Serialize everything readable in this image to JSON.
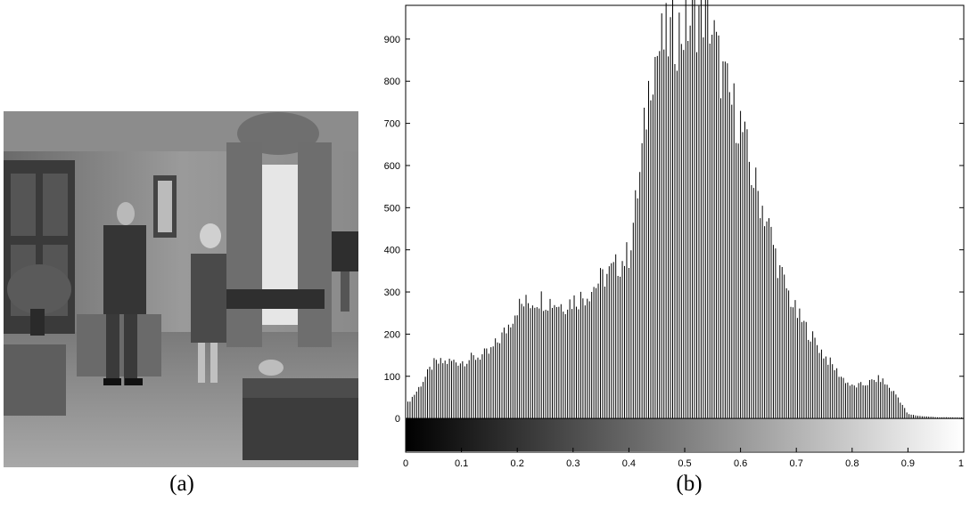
{
  "panel_a": {
    "caption": "(a)"
  },
  "panel_b": {
    "caption": "(b)"
  },
  "chart_data": {
    "type": "bar",
    "title": "",
    "xlabel": "",
    "ylabel": "",
    "xlim": [
      0,
      1
    ],
    "ylim": [
      -80,
      980
    ],
    "x_ticks": [
      0,
      0.1,
      0.2,
      0.3,
      0.4,
      0.5,
      0.6,
      0.7,
      0.8,
      0.9,
      1
    ],
    "x_tick_labels": [
      "0",
      "0.1",
      "0.2",
      "0.3",
      "0.4",
      "0.5",
      "0.6",
      "0.7",
      "0.8",
      "0.9",
      "1"
    ],
    "y_ticks": [
      0,
      100,
      200,
      300,
      400,
      500,
      600,
      700,
      800,
      900
    ],
    "y_tick_labels": [
      "0",
      "100",
      "200",
      "300",
      "400",
      "500",
      "600",
      "700",
      "800",
      "900"
    ],
    "grid": false,
    "colorbar": "grayscale gradient from black (0) to white (1) below the zero line",
    "bar_color": "#000000",
    "control_points": [
      [
        0.0,
        30
      ],
      [
        0.02,
        65
      ],
      [
        0.05,
        130
      ],
      [
        0.08,
        135
      ],
      [
        0.1,
        135
      ],
      [
        0.15,
        155
      ],
      [
        0.18,
        210
      ],
      [
        0.2,
        265
      ],
      [
        0.24,
        285
      ],
      [
        0.28,
        270
      ],
      [
        0.32,
        290
      ],
      [
        0.35,
        330
      ],
      [
        0.37,
        350
      ],
      [
        0.4,
        390
      ],
      [
        0.42,
        580
      ],
      [
        0.44,
        840
      ],
      [
        0.46,
        890
      ],
      [
        0.48,
        910
      ],
      [
        0.5,
        930
      ],
      [
        0.52,
        960
      ],
      [
        0.54,
        980
      ],
      [
        0.56,
        850
      ],
      [
        0.58,
        760
      ],
      [
        0.6,
        700
      ],
      [
        0.62,
        580
      ],
      [
        0.65,
        460
      ],
      [
        0.67,
        350
      ],
      [
        0.7,
        250
      ],
      [
        0.72,
        210
      ],
      [
        0.75,
        150
      ],
      [
        0.78,
        100
      ],
      [
        0.8,
        75
      ],
      [
        0.82,
        80
      ],
      [
        0.85,
        95
      ],
      [
        0.88,
        55
      ],
      [
        0.9,
        10
      ],
      [
        0.92,
        6
      ],
      [
        0.95,
        3
      ],
      [
        1.0,
        2
      ]
    ]
  }
}
